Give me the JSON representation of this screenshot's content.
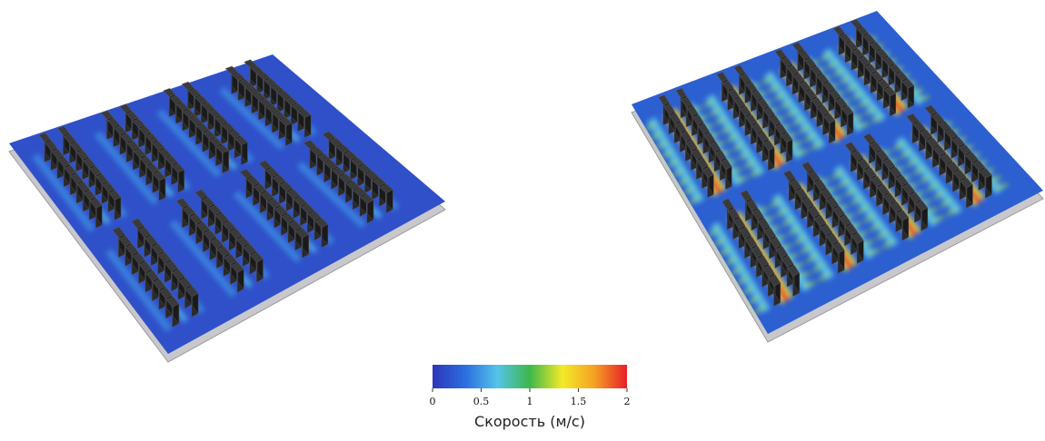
{
  "colorbar": {
    "label": "Скорость (м/с)",
    "lim": [
      0,
      2
    ],
    "ticks": [
      0,
      0.5,
      1,
      1.5,
      2
    ],
    "colors": [
      "#2c35b8",
      "#2b6de0",
      "#55c3ea",
      "#3db84a",
      "#f3ea2a",
      "#f5a023",
      "#e81e28"
    ]
  }
}
